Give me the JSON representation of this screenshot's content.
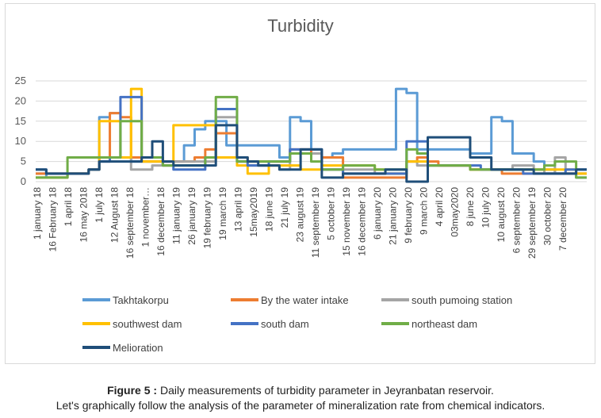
{
  "chart_data": {
    "type": "line",
    "title": "Turbidity",
    "ylim": [
      0,
      25
    ],
    "yticks": [
      0,
      5,
      10,
      15,
      20,
      25
    ],
    "grid": true,
    "legend_position": "bottom",
    "x_tick_labels": [
      "1 january 18",
      "16 February 18",
      "1 april 18",
      "16 may 2018",
      "1 july 18",
      "12 August 18",
      "16 september 18",
      "1 november…",
      "16 december 18",
      "11 january 19",
      "26 january 19",
      "19 february 19",
      "19 march 19",
      "13 april 19",
      "15may2019",
      "18 june 19",
      "21 july 19",
      "23 august 19",
      "11 september 19",
      "5 october 19",
      "15 november 19",
      "16 december 19",
      "6 january 20",
      "21 january 20",
      "9 february 20",
      "9 march 20",
      "4 april 20",
      "03may2020",
      "8 june 20",
      "10 july 20",
      "10 august 20",
      "6 september 20",
      "29 september 19",
      "30 october 20",
      "7 december 20"
    ],
    "series": [
      {
        "name": "Takhtakorpu",
        "color": "#5b9bd5",
        "values": [
          2,
          1,
          1,
          2,
          2,
          3,
          16,
          17,
          6,
          5,
          5,
          5,
          5,
          5,
          9,
          13,
          15,
          15,
          9,
          9,
          9,
          9,
          9,
          6,
          16,
          15,
          8,
          6,
          7,
          8,
          8,
          8,
          8,
          8,
          23,
          22,
          8,
          8,
          8,
          8,
          8,
          7,
          7,
          16,
          15,
          7,
          7,
          5,
          3,
          2,
          2,
          1,
          1
        ]
      },
      {
        "name": "By the water intake",
        "color": "#ed7d31",
        "values": [
          2,
          2,
          2,
          2,
          2,
          3,
          6,
          17,
          16,
          6,
          5,
          5,
          5,
          5,
          5,
          6,
          8,
          12,
          12,
          6,
          5,
          5,
          5,
          5,
          8,
          8,
          7,
          6,
          6,
          1,
          1,
          1,
          1,
          1,
          1,
          5,
          6,
          5,
          4,
          4,
          4,
          3,
          3,
          3,
          2,
          2,
          2,
          2,
          2,
          2,
          2,
          2,
          2
        ]
      },
      {
        "name": "south pumoing station",
        "color": "#a5a5a5",
        "values": [
          1,
          1,
          1,
          2,
          2,
          3,
          6,
          6,
          6,
          3,
          3,
          4,
          5,
          5,
          5,
          5,
          5,
          16,
          16,
          5,
          4,
          4,
          4,
          3,
          7,
          7,
          7,
          3,
          3,
          3,
          3,
          3,
          2,
          2,
          2,
          5,
          4,
          4,
          4,
          4,
          4,
          3,
          3,
          3,
          3,
          4,
          4,
          3,
          2,
          6,
          2,
          2,
          2
        ]
      },
      {
        "name": "southwest dam",
        "color": "#ffc000",
        "values": [
          1,
          1,
          1,
          2,
          2,
          3,
          15,
          15,
          6,
          23,
          5,
          5,
          4,
          14,
          14,
          14,
          14,
          6,
          6,
          4,
          2,
          2,
          4,
          4,
          4,
          3,
          3,
          4,
          4,
          4,
          4,
          4,
          3,
          2,
          2,
          5,
          5,
          4,
          4,
          4,
          4,
          3,
          3,
          3,
          3,
          3,
          3,
          3,
          3,
          3,
          3,
          2,
          2
        ]
      },
      {
        "name": "south dam",
        "color": "#4472c4",
        "values": [
          3,
          2,
          2,
          2,
          2,
          3,
          5,
          6,
          21,
          21,
          6,
          6,
          4,
          3,
          3,
          3,
          6,
          18,
          18,
          5,
          4,
          4,
          5,
          5,
          8,
          8,
          8,
          3,
          3,
          2,
          2,
          2,
          2,
          2,
          2,
          10,
          10,
          4,
          4,
          4,
          4,
          4,
          3,
          3,
          3,
          3,
          2,
          2,
          2,
          2,
          3,
          3,
          3
        ]
      },
      {
        "name": "northeast dam",
        "color": "#70ad47",
        "values": [
          1,
          1,
          1,
          6,
          6,
          6,
          6,
          6,
          15,
          15,
          6,
          6,
          4,
          4,
          4,
          4,
          6,
          21,
          21,
          5,
          5,
          5,
          5,
          5,
          7,
          7,
          5,
          3,
          3,
          4,
          4,
          4,
          3,
          3,
          3,
          8,
          7,
          4,
          4,
          4,
          4,
          3,
          3,
          3,
          3,
          3,
          3,
          3,
          4,
          5,
          5,
          1,
          1
        ]
      },
      {
        "name": "Melioration",
        "color": "#1f4e79",
        "values": [
          3,
          2,
          2,
          2,
          2,
          3,
          5,
          5,
          5,
          5,
          6,
          10,
          5,
          4,
          4,
          4,
          4,
          14,
          14,
          6,
          5,
          4,
          4,
          3,
          3,
          8,
          8,
          1,
          1,
          2,
          2,
          2,
          2,
          3,
          3,
          0,
          0,
          11,
          11,
          11,
          11,
          6,
          6,
          3,
          3,
          3,
          3,
          2,
          2,
          2,
          2,
          3,
          3
        ]
      }
    ]
  },
  "caption": {
    "figure_label": "Figure 5 :",
    "figure_text": " Daily measurements of turbidity parameter in Jeyranbatan reservoir.",
    "note": "Let's graphically follow the analysis of the parameter of mineralization rate from chemical indicators."
  }
}
